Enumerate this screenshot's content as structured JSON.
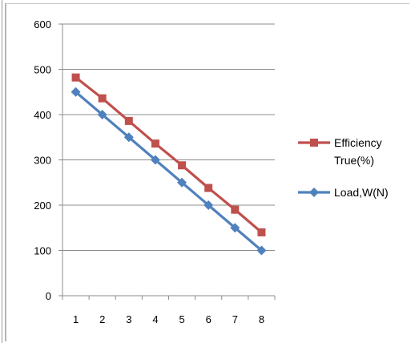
{
  "chart_data": {
    "type": "line",
    "categories": [
      "1",
      "2",
      "3",
      "4",
      "5",
      "6",
      "7",
      "8"
    ],
    "ylim": [
      0,
      600
    ],
    "yticks": [
      "0",
      "100",
      "200",
      "300",
      "400",
      "500",
      "600"
    ],
    "grid": true,
    "legend_position": "right",
    "series": [
      {
        "name_lines": [
          "Efficiency",
          "True(%)"
        ],
        "color": "#c0504d",
        "marker": "square",
        "values": [
          482,
          436,
          386,
          336,
          288,
          238,
          190,
          140
        ]
      },
      {
        "name_lines": [
          "Load,W(N)"
        ],
        "color": "#4f81bd",
        "marker": "diamond",
        "values": [
          450,
          400,
          350,
          300,
          250,
          200,
          150,
          100
        ]
      }
    ]
  }
}
